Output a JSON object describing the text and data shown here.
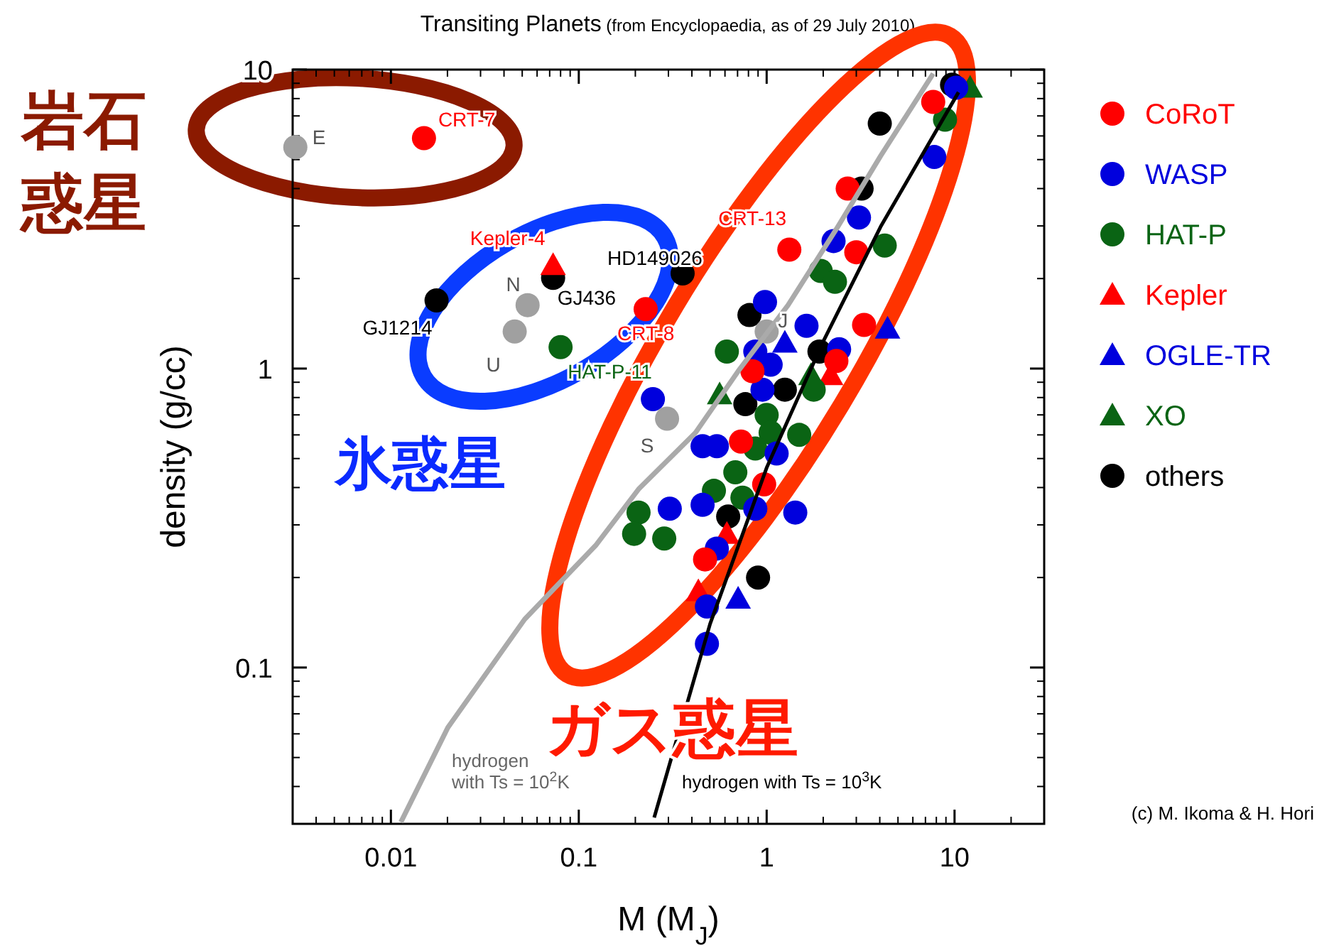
{
  "chart_data": {
    "type": "scatter",
    "title": "Transiting Planets",
    "subtitle": "(from Encyclopaedia, as of 29 July 2010)",
    "xlabel": "M (M$_{J}$)",
    "ylabel": "density (g/cc)",
    "log": "xy",
    "xlim": [
      0.003,
      30
    ],
    "ylim": [
      0.03,
      10
    ],
    "xticks": [
      0.01,
      0.1,
      1,
      10
    ],
    "yticks": [
      0.1,
      1,
      10
    ],
    "legend": "right",
    "series": [
      {
        "type": "line",
        "name": "hydrogen\nwith Ts = 10$^{2}$K",
        "color": "#aaaaaa",
        "marker": "none",
        "x": [
          0.0113,
          0.0201,
          0.0515,
          0.123,
          0.208,
          0.418,
          0.705,
          1.3,
          2.39,
          4.04,
          7.7
        ],
        "values": [
          0.0304,
          0.063,
          0.145,
          0.256,
          0.395,
          0.61,
          0.98,
          1.63,
          2.98,
          5.14,
          9.7
        ]
      },
      {
        "type": "line",
        "name": "hydrogen with Ts = 10$^{3}$K",
        "color": "#000000",
        "marker": "none",
        "x": [
          0.252,
          0.5,
          1.0,
          2.01,
          4.04,
          10.5
        ],
        "values": [
          0.0315,
          0.14,
          0.466,
          1.24,
          2.98,
          8.4
        ]
      },
      {
        "color": "#a0a0a0",
        "marker": "circle",
        "x": [
          0.0031,
          0.0456,
          0.0534,
          0.295,
          1.0
        ],
        "values": [
          5.5,
          1.33,
          1.63,
          0.68,
          1.33
        ]
      },
      {
        "name": "CoRoT",
        "color": "#ff0000",
        "marker": "circle",
        "x": [
          0.015,
          7.7,
          2.7,
          1.32,
          3.0,
          0.227,
          3.3,
          2.35,
          0.84,
          0.73,
          0.97,
          0.47
        ],
        "values": [
          5.9,
          7.8,
          4.0,
          2.5,
          2.45,
          1.58,
          1.4,
          1.06,
          0.98,
          0.57,
          0.41,
          0.23
        ]
      },
      {
        "name": "WASP",
        "color": "#0000dd",
        "marker": "circle",
        "x": [
          10.2,
          7.8,
          3.1,
          2.27,
          0.98,
          1.63,
          2.43,
          0.87,
          1.05,
          0.95,
          0.248,
          0.456,
          0.543,
          1.13,
          0.456,
          0.87,
          0.305,
          1.42,
          0.543,
          0.481,
          0.481
        ],
        "values": [
          8.7,
          5.1,
          3.2,
          2.67,
          1.67,
          1.39,
          1.16,
          1.14,
          1.03,
          0.85,
          0.79,
          0.55,
          0.55,
          0.52,
          0.35,
          0.34,
          0.34,
          0.33,
          0.25,
          0.16,
          0.12
        ]
      },
      {
        "name": "HAT-P",
        "color": "#0a6414",
        "marker": "circle",
        "x": [
          8.9,
          4.25,
          1.94,
          2.31,
          0.08,
          0.614,
          1.78,
          1.0,
          1.05,
          1.49,
          0.87,
          0.681,
          0.524,
          0.743,
          0.208,
          0.197,
          0.285
        ],
        "values": [
          6.8,
          2.58,
          2.12,
          1.95,
          1.18,
          1.14,
          0.85,
          0.7,
          0.61,
          0.6,
          0.54,
          0.45,
          0.39,
          0.37,
          0.33,
          0.28,
          0.27
        ]
      },
      {
        "name": "Kepler",
        "color": "#ff0000",
        "marker": "triangle",
        "x": [
          0.073,
          2.19,
          0.614,
          0.433
        ],
        "values": [
          2.22,
          0.95,
          0.28,
          0.18
        ]
      },
      {
        "name": "OGLE-TR",
        "color": "#0000dd",
        "marker": "triangle",
        "x": [
          1.25,
          4.4,
          0.705
        ],
        "values": [
          1.22,
          1.36,
          0.17
        ]
      },
      {
        "name": "XO",
        "color": "#0a6414",
        "marker": "triangle",
        "x": [
          12.1,
          0.562,
          1.72
        ],
        "values": [
          8.7,
          0.82,
          0.95
        ]
      },
      {
        "name": "others",
        "color": "#000000",
        "marker": "circle",
        "x": [
          9.7,
          4.0,
          3.2,
          0.357,
          0.073,
          0.0175,
          0.81,
          1.91,
          0.77,
          1.25,
          0.624,
          0.9
        ],
        "values": [
          8.9,
          6.6,
          4.0,
          2.08,
          2.01,
          1.69,
          1.51,
          1.14,
          0.76,
          0.85,
          0.32,
          0.2
        ]
      }
    ],
    "annotations": [
      {
        "text": "E",
        "x": 0.0031,
        "y": 5.5
      },
      {
        "text": "CRT-7",
        "x": 0.015,
        "y": 5.9
      },
      {
        "text": "Kepler-4",
        "x": 0.073,
        "y": 2.22
      },
      {
        "text": "HD149026",
        "x": 0.357,
        "y": 2.08
      },
      {
        "text": "GJ436",
        "x": 0.073,
        "y": 2.01
      },
      {
        "text": "GJ1214",
        "x": 0.0175,
        "y": 1.69
      },
      {
        "text": "CRT-8",
        "x": 0.227,
        "y": 1.58
      },
      {
        "text": "HAT-P-11",
        "x": 0.08,
        "y": 1.18
      },
      {
        "text": "CRT-13",
        "x": 1.32,
        "y": 2.5
      },
      {
        "text": "U",
        "x": 0.0456,
        "y": 1.33
      },
      {
        "text": "N",
        "x": 0.0534,
        "y": 1.63
      },
      {
        "text": "S",
        "x": 0.295,
        "y": 0.68
      },
      {
        "text": "J",
        "x": 1.0,
        "y": 1.33
      },
      "岩石",
      "惑星",
      "氷惑星",
      "ガス惑星",
      "(c) M. Ikoma & H. Hori"
    ]
  }
}
